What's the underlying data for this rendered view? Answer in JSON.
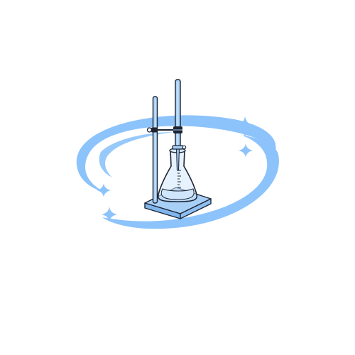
{
  "illustration": {
    "subject": "titration-apparatus",
    "parts": [
      "ring-swoosh",
      "stand-base",
      "stand-rod",
      "clamp",
      "burette",
      "stopcock",
      "erlenmeyer-flask",
      "sparkles"
    ]
  },
  "colors": {
    "swoosh": "#8cc3fb",
    "swoosh_dark": "#6fb0f5",
    "glass": "#a8d0f7",
    "glass_light": "#d2e8fc",
    "outline": "#1d2433",
    "liquid": "#cfe6fb",
    "background": "#ffffff"
  },
  "icons": {
    "sparkle": "four-point-star-icon"
  }
}
